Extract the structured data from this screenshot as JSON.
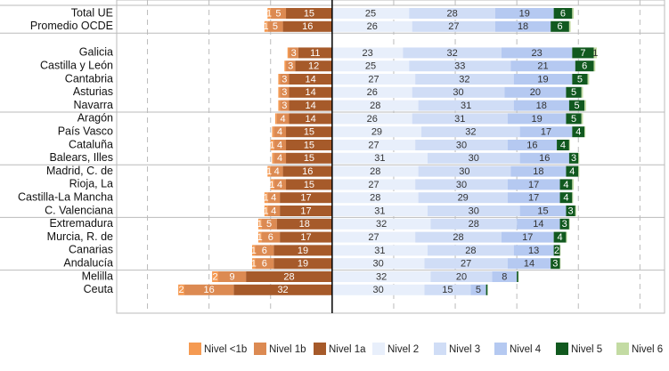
{
  "chart_data": {
    "type": "diverging_stacked_bar",
    "categories": [
      "Total UE",
      "Promedio OCDE",
      null,
      "Galicia",
      "Castilla y León",
      "Cantabria",
      "Asturias",
      "Navarra",
      "Aragón",
      "País Vasco",
      "Cataluña",
      "Balears, Illes",
      "Madrid, C. de",
      "Rioja, La",
      "Castilla-La Mancha",
      "C. Valenciana",
      "Extremadura",
      "Murcia, R. de",
      "Canarias",
      "Andalucía",
      "Melilla",
      "Ceuta"
    ],
    "series": [
      {
        "name": "Nivel <1b",
        "color": "#f59a52",
        "side": "negative",
        "values": [
          1,
          1,
          null,
          0.5,
          0.5,
          0.5,
          0.5,
          0.5,
          0.5,
          0.5,
          1,
          0.5,
          1,
          1,
          1,
          1,
          1,
          1,
          1,
          1,
          2,
          2
        ]
      },
      {
        "name": "Nivel 1b",
        "color": "#dc8a52",
        "side": "negative",
        "values": [
          5,
          5,
          null,
          3,
          3,
          3,
          3,
          3,
          4,
          4,
          4,
          4,
          4,
          4,
          4,
          4,
          5,
          6,
          6,
          6,
          9,
          16
        ]
      },
      {
        "name": "Nivel 1a",
        "color": "#a65a2a",
        "side": "negative",
        "values": [
          15,
          16,
          null,
          11,
          12,
          14,
          14,
          14,
          14,
          15,
          15,
          15,
          16,
          15,
          17,
          17,
          18,
          17,
          19,
          19,
          28,
          32
        ]
      },
      {
        "name": "Nivel 2",
        "color": "#e8effb",
        "side": "positive",
        "values": [
          25,
          26,
          null,
          23,
          25,
          27,
          26,
          28,
          26,
          29,
          27,
          31,
          28,
          27,
          28,
          31,
          32,
          27,
          31,
          30,
          32,
          30
        ]
      },
      {
        "name": "Nivel 3",
        "color": "#d0ddf6",
        "side": "positive",
        "values": [
          28,
          27,
          null,
          32,
          33,
          32,
          30,
          31,
          31,
          32,
          30,
          30,
          30,
          30,
          29,
          30,
          28,
          28,
          28,
          27,
          20,
          15
        ]
      },
      {
        "name": "Nivel 4",
        "color": "#b5c9f1",
        "side": "positive",
        "values": [
          19,
          18,
          null,
          23,
          21,
          19,
          20,
          18,
          19,
          17,
          16,
          16,
          18,
          17,
          17,
          15,
          14,
          17,
          13,
          14,
          8,
          5
        ]
      },
      {
        "name": "Nivel 5",
        "color": "#11591f",
        "side": "positive",
        "values": [
          6,
          6,
          null,
          7,
          6,
          5,
          5,
          5,
          5,
          4,
          4,
          3,
          4,
          4,
          4,
          3,
          3,
          4,
          2,
          3,
          0.5,
          0.5
        ]
      },
      {
        "name": "Nivel 6",
        "color": "#c3dba3",
        "side": "positive",
        "values": [
          0.5,
          0.5,
          null,
          1,
          0.5,
          0.5,
          0.5,
          0.5,
          0.5,
          0.3,
          0.3,
          0.3,
          0.3,
          0.5,
          0.3,
          0.3,
          0.2,
          0.3,
          0.2,
          0.2,
          0.1,
          0.1
        ]
      }
    ],
    "xlim": [
      -70,
      108
    ],
    "xticks": [
      -60,
      -40,
      -20,
      20,
      40,
      60,
      80,
      100
    ],
    "grid": true
  }
}
